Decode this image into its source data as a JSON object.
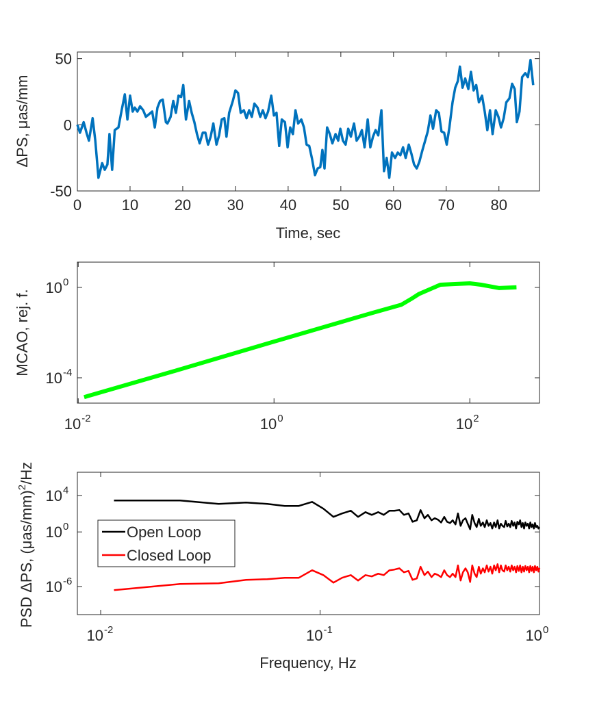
{
  "chart_data": [
    {
      "type": "line",
      "xlabel": "Time, sec",
      "ylabel": "ΔPS, μas/mm",
      "color": "#0072bd",
      "xlim": [
        0,
        87.7
      ],
      "ylim": [
        -50,
        55
      ],
      "xticks": [
        0,
        10,
        20,
        30,
        40,
        50,
        60,
        70,
        80
      ],
      "yticks": [
        -50,
        0,
        50
      ],
      "x": [
        0,
        0.5,
        1.2,
        1.8,
        2.2,
        2.9,
        3.4,
        4.0,
        4.7,
        5.2,
        5.7,
        6.1,
        6.6,
        7.1,
        7.8,
        8.4,
        9.0,
        9.5,
        10.0,
        10.5,
        10.9,
        11.4,
        11.9,
        12.5,
        13,
        13.6,
        14.2,
        14.7,
        15.2,
        15.7,
        16.2,
        16.8,
        17.1,
        17.7,
        18.2,
        18.7,
        19.2,
        19.7,
        20.1,
        20.6,
        21.2,
        21.7,
        22.2,
        22.7,
        23.2,
        23.8,
        24.3,
        24.8,
        25.3,
        25.8,
        26.4,
        26.9,
        27.4,
        27.9,
        28.3,
        28.8,
        29.5,
        30.0,
        30.5,
        31.0,
        31.6,
        32.1,
        32.6,
        33.1,
        33.6,
        34.2,
        34.7,
        35.2,
        35.7,
        36.2,
        36.8,
        37.3,
        37.8,
        38.3,
        38.8,
        39.4,
        39.9,
        40.4,
        40.9,
        41.4,
        41.9,
        42.5,
        43,
        43.5,
        44,
        44.5,
        45.1,
        45.6,
        46.1,
        46.5,
        46.9,
        47.4,
        47.9,
        48.4,
        49.0,
        49.5,
        49.9,
        50.4,
        50.9,
        51.4,
        51.9,
        52.5,
        53,
        53.5,
        54,
        54.5,
        55.1,
        55.6,
        56.1,
        56.6,
        57.1,
        57.7,
        58.2,
        58.7,
        59.2,
        59.7,
        60.3,
        60.8,
        61.3,
        61.8,
        62.3,
        62.9,
        63.4,
        63.9,
        64.4,
        64.9,
        65.5,
        66,
        66.5,
        67,
        67.5,
        68.1,
        68.6,
        69.1,
        69.6,
        70.1,
        70.6,
        71.2,
        71.7,
        72.2,
        72.6,
        73.1,
        73.6,
        74.2,
        74.7,
        75.2,
        75.7,
        76.2,
        76.8,
        77.3,
        77.8,
        78.3,
        78.8,
        79.4,
        79.9,
        80.4,
        80.9,
        81.4,
        82,
        82.5,
        83,
        83.4,
        83.9,
        84.4,
        85,
        85.5,
        86,
        86.5
      ],
      "values": [
        0,
        -6,
        2,
        -7,
        -12,
        5,
        -12,
        -40,
        -29,
        -34,
        -30,
        -7,
        -34,
        -4,
        -2,
        11,
        23,
        4,
        22,
        10,
        13,
        10,
        14,
        11,
        6,
        8,
        10,
        -2,
        13,
        18,
        19,
        2,
        1,
        6,
        18,
        9,
        22,
        21,
        30,
        4,
        18,
        9,
        2,
        -7,
        -14,
        -6,
        -6,
        -15,
        -9,
        1,
        -15,
        -8,
        4,
        5,
        -9,
        9,
        18,
        26,
        24,
        9,
        11,
        5,
        11,
        6,
        16,
        13,
        6,
        11,
        5,
        10,
        22,
        7,
        9,
        -16,
        4,
        2,
        -17,
        -2,
        -7,
        11,
        1,
        4,
        -2,
        -15,
        -16,
        -25,
        -38,
        -33,
        -32,
        -19,
        -33,
        -2,
        -7,
        -14,
        -7,
        -12,
        -3,
        -12,
        -15,
        -3,
        -9,
        1,
        -12,
        -9,
        -4,
        -17,
        4,
        -17,
        -9,
        -4,
        -8,
        11,
        -35,
        -25,
        -40,
        -21,
        -25,
        -21,
        -23,
        -17,
        -25,
        -15,
        -22,
        -30,
        -33,
        -28,
        -19,
        -12,
        -5,
        7,
        -3,
        11,
        9,
        -5,
        -6,
        -15,
        -2,
        17,
        28,
        33,
        44,
        28,
        35,
        27,
        40,
        26,
        30,
        17,
        22,
        10,
        -4,
        11,
        -7,
        11,
        6,
        -2,
        5,
        17,
        20,
        31,
        27,
        2,
        10,
        36,
        39,
        36,
        49,
        30
      ]
    },
    {
      "type": "line",
      "ylabel": "MCAO, rej. f.",
      "color": "#00ff00",
      "xlog": true,
      "ylog": true,
      "xlim": [
        0.0098,
        515
      ],
      "ylim": [
        7.6e-06,
        13
      ],
      "xticks": [
        {
          "value": 0.01,
          "label": "10",
          "exponent": "-2"
        },
        {
          "value": 1,
          "label": "10",
          "exponent": "0"
        },
        {
          "value": 100,
          "label": "10",
          "exponent": "2"
        }
      ],
      "yticks": [
        {
          "value": 0.0001,
          "label": "10",
          "exponent": "-4"
        },
        {
          "value": 1,
          "label": "10",
          "exponent": "0"
        }
      ],
      "x": [
        0.0115,
        0.1,
        1,
        10,
        20,
        25,
        30,
        50,
        100,
        130,
        200,
        300
      ],
      "values": [
        1.4e-05,
        0.00021,
        0.004,
        0.073,
        0.17,
        0.3,
        0.5,
        1.3,
        1.5,
        1.3,
        0.93,
        1.0
      ]
    },
    {
      "type": "line",
      "xlabel": "Frequency, Hz",
      "ylabel": "PSD ΔPS, (μas/mm)",
      "ylabel_sup": "2",
      "ylabel_tail": "/Hz",
      "xlog": true,
      "ylog": true,
      "legend": "west",
      "xlim": [
        0.00783,
        1
      ],
      "ylim": [
        8.3e-10,
        3600000.0
      ],
      "xticks": [
        {
          "value": 0.01,
          "label": "10",
          "exponent": "-2"
        },
        {
          "value": 0.1,
          "label": "10",
          "exponent": "-1"
        },
        {
          "value": 1,
          "label": "10",
          "exponent": "0"
        }
      ],
      "yticks": [
        {
          "value": 1e-06,
          "label": "10",
          "exponent": "-6"
        },
        {
          "value": 1,
          "label": "10",
          "exponent": "0"
        },
        {
          "value": 10000,
          "label": "10",
          "exponent": "4"
        }
      ],
      "x": [
        0.0115,
        0.023,
        0.0345,
        0.046,
        0.0575,
        0.069,
        0.08,
        0.092,
        0.1035,
        0.115,
        0.126,
        0.138,
        0.149,
        0.161,
        0.172,
        0.184,
        0.195,
        0.207,
        0.218,
        0.23,
        0.241,
        0.253,
        0.264,
        0.276,
        0.287,
        0.299,
        0.31,
        0.322,
        0.333,
        0.345,
        0.356,
        0.368,
        0.379,
        0.391,
        0.402,
        0.414,
        0.425,
        0.437,
        0.448,
        0.46,
        0.471,
        0.483,
        0.494,
        0.506,
        0.517,
        0.529,
        0.54,
        0.552,
        0.563,
        0.575,
        0.586,
        0.598,
        0.609,
        0.621,
        0.632,
        0.644,
        0.655,
        0.667,
        0.678,
        0.69,
        0.701,
        0.713,
        0.724,
        0.736,
        0.747,
        0.759,
        0.77,
        0.782,
        0.793,
        0.805,
        0.816,
        0.828,
        0.839,
        0.851,
        0.862,
        0.874,
        0.885,
        0.897,
        0.908,
        0.92,
        0.931,
        0.943,
        0.954,
        0.966,
        0.977,
        0.989,
        1.0
      ],
      "series": [
        {
          "name": "Open Loop",
          "color": "#000000",
          "values": [
            2900,
            2900,
            1200,
            1700,
            1200,
            720,
            720,
            2000,
            360,
            45,
            107,
            215,
            45,
            150,
            75,
            150,
            75,
            215,
            215,
            250,
            75,
            107,
            13,
            19,
            250,
            32,
            75,
            19,
            32,
            22,
            11,
            45,
            13,
            9.5,
            19,
            6.7,
            107,
            4.7,
            19,
            32,
            8,
            2,
            75,
            9.5,
            3.4,
            27,
            4.7,
            11,
            3.4,
            19,
            4.7,
            9.5,
            2.4,
            11,
            3.4,
            19,
            2.4,
            8,
            4.7,
            3.4,
            16,
            4,
            8,
            3.4,
            16,
            4.7,
            11,
            2.4,
            13,
            6.7,
            19,
            3.4,
            9.5,
            2.4,
            11,
            4.7,
            8,
            2.4,
            11,
            3.4,
            6.7,
            2.4,
            9.5,
            3.4,
            4.7,
            2.4,
            3.4
          ]
        },
        {
          "name": "Closed Loop",
          "color": "#ff0000",
          "values": [
            4.1e-07,
            1.9e-06,
            2.3e-06,
            5.5e-06,
            6.5e-06,
            9.2e-06,
            9.2e-06,
            6.2e-05,
            1.8e-05,
            2.7e-06,
            9.2e-06,
            1.8e-05,
            4.6e-06,
            1.8e-05,
            1.3e-05,
            2.6e-05,
            1.8e-05,
            6.2e-05,
            7.3e-05,
            0.0001,
            3.7e-05,
            5.2e-05,
            5.5e-06,
            7.7e-06,
            0.00015,
            1.8e-05,
            4.4e-05,
            1.1e-05,
            2.6e-05,
            1.8e-05,
            1.1e-05,
            6.2e-05,
            1.8e-05,
            1.1e-05,
            2.6e-05,
            1.1e-05,
            0.00021,
            4.6e-06,
            3.7e-05,
            0.0001,
            3.7e-05,
            3.2e-06,
            0.00021,
            2.6e-05,
            1.1e-05,
            0.00015,
            2.6e-05,
            0.0001,
            3.7e-05,
            0.00021,
            4.4e-05,
            0.00015,
            2.6e-05,
            0.00021,
            6.2e-05,
            0.00029,
            3.7e-05,
            0.00021,
            6.2e-05,
            4.4e-05,
            0.00021,
            6.2e-05,
            0.00015,
            4.4e-05,
            0.00021,
            6.2e-05,
            0.00015,
            3.7e-05,
            0.00018,
            5.2e-05,
            0.00021,
            3.7e-05,
            0.00015,
            4.4e-05,
            0.00018,
            6.2e-05,
            0.00015,
            3.7e-05,
            0.00018,
            5.2e-05,
            0.00015,
            3.7e-05,
            0.00018,
            6.2e-05,
            0.00015,
            4.4e-05,
            0.00011
          ]
        }
      ]
    }
  ]
}
